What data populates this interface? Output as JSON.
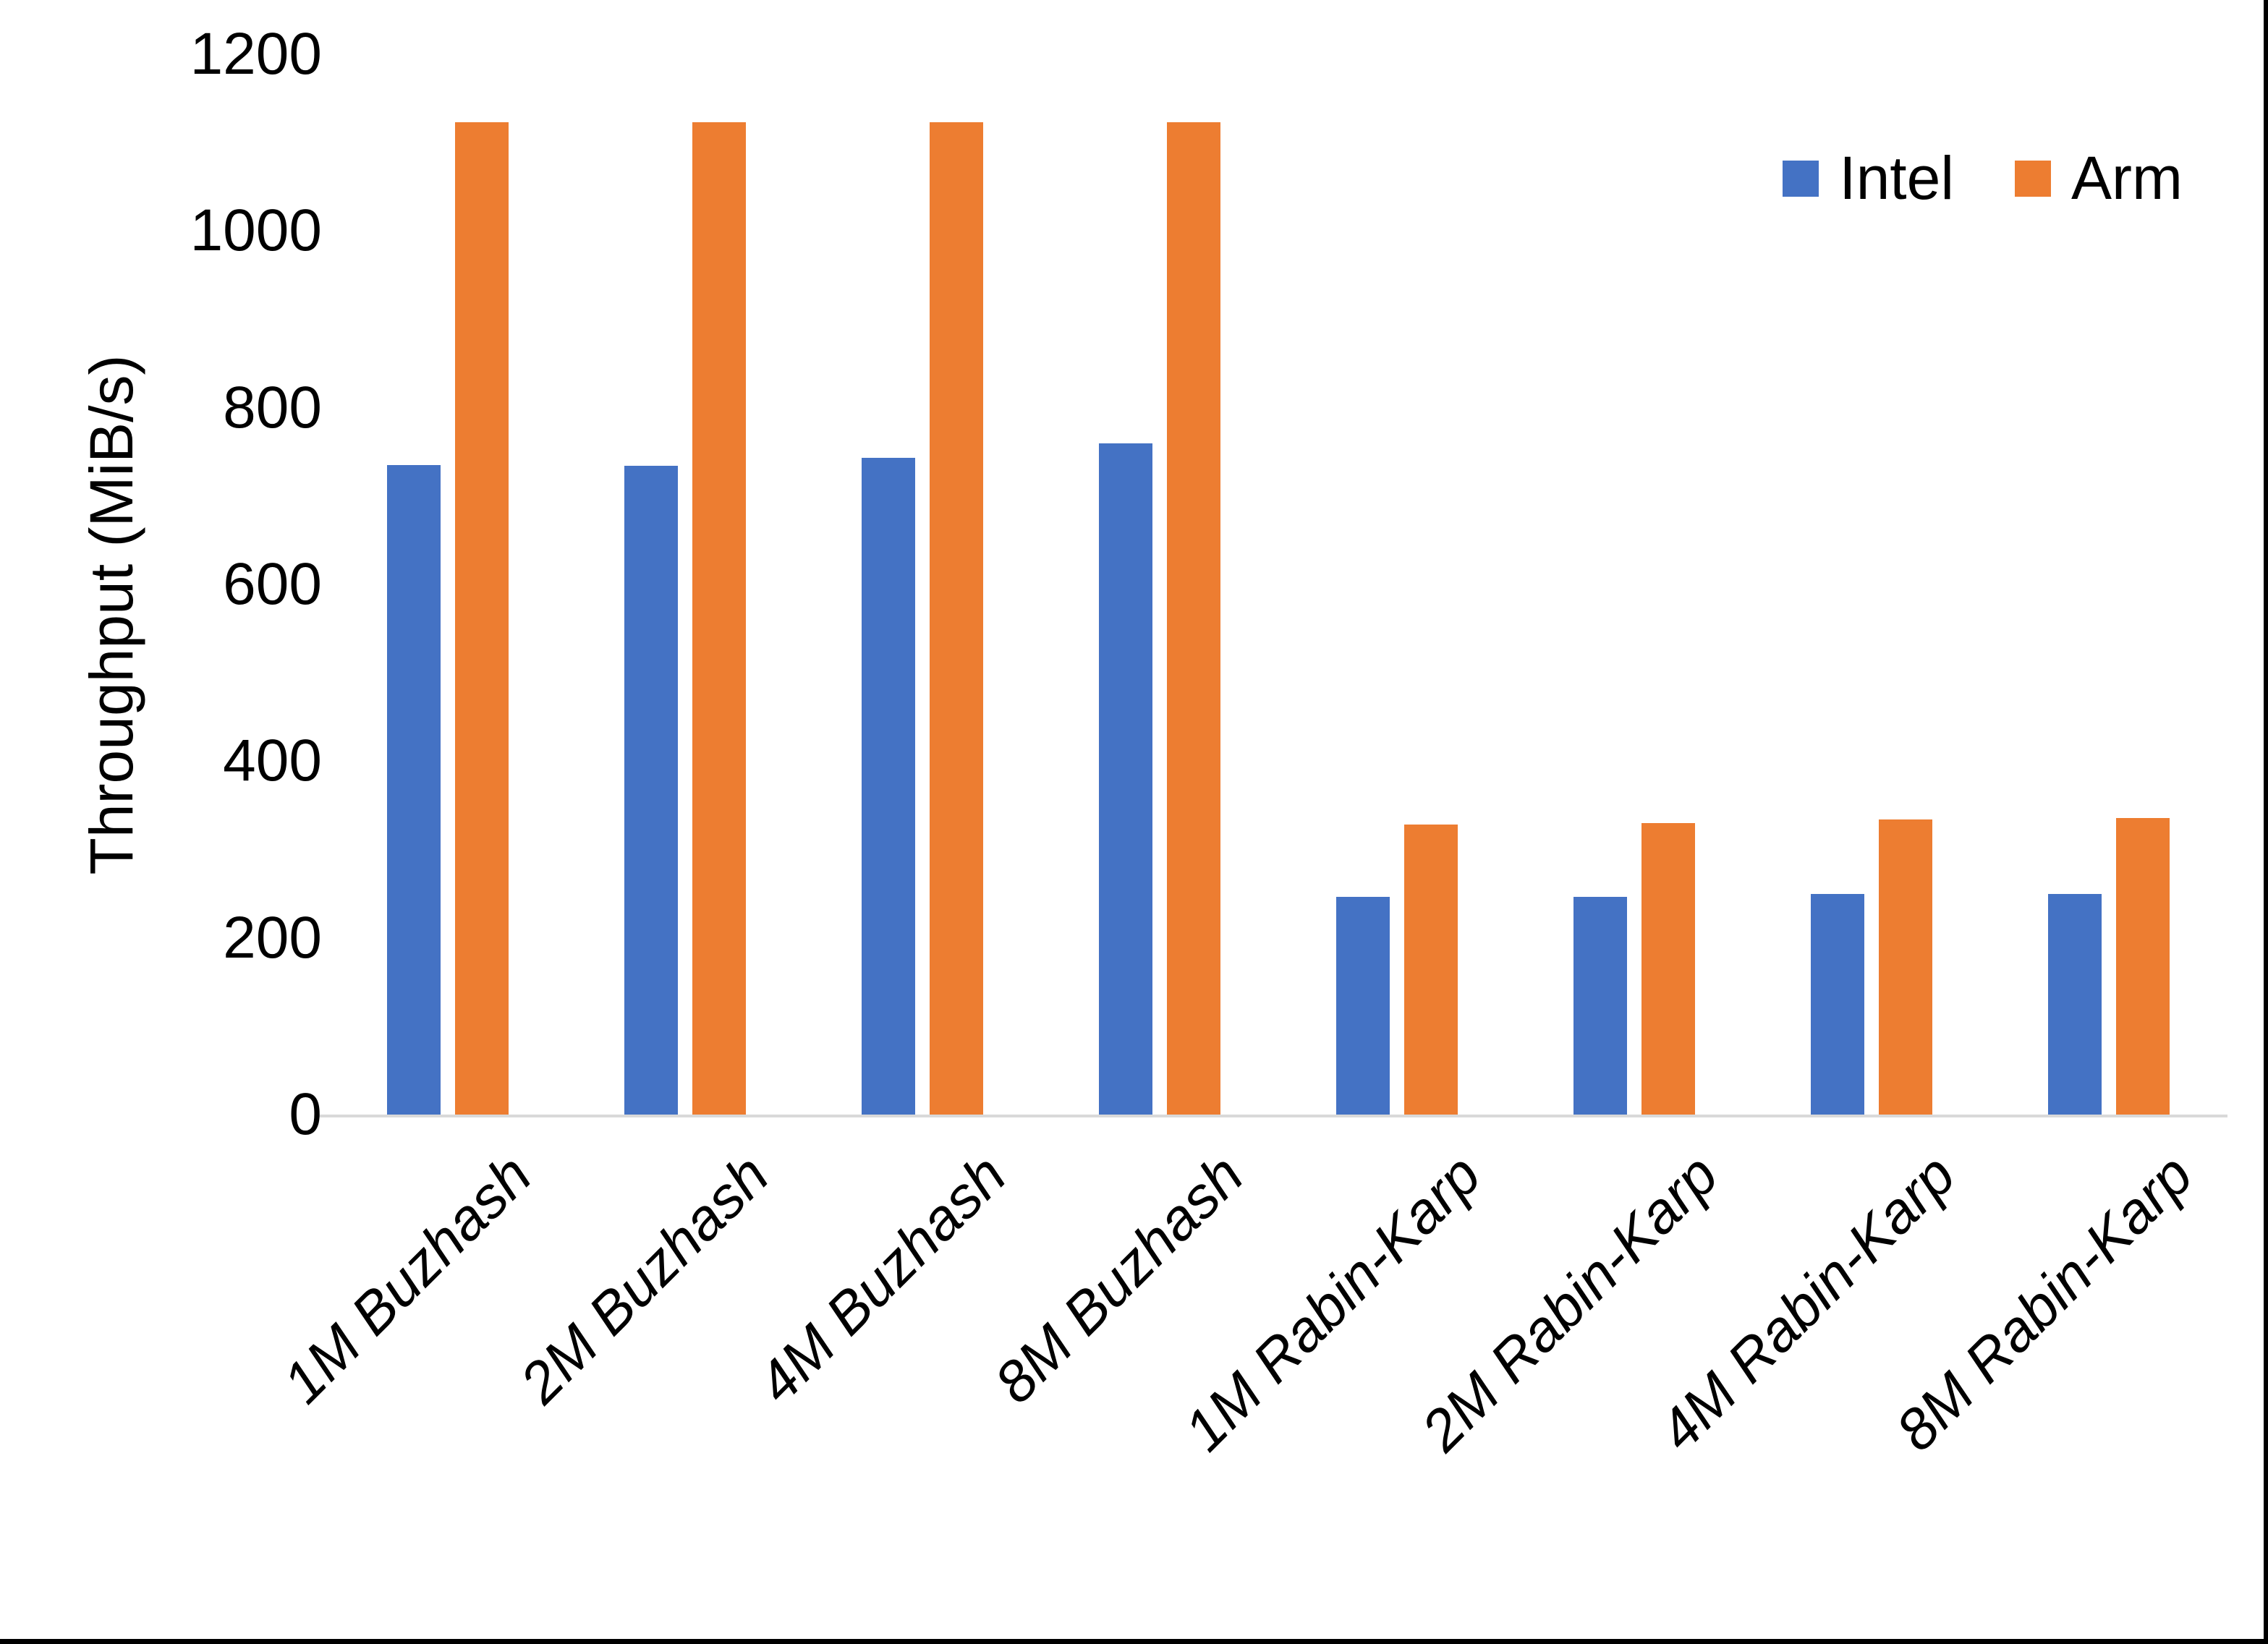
{
  "chart_data": {
    "type": "bar",
    "title": "",
    "xlabel": "",
    "ylabel": "Throughput (MiB/s)",
    "ylim": [
      0,
      1200
    ],
    "yticks": [
      0,
      200,
      400,
      600,
      800,
      1000,
      1200
    ],
    "grid": false,
    "legend_position": "top-right",
    "categories": [
      "1M Buzhash",
      "2M Buzhash",
      "4M Buzhash",
      "8M Buzhash",
      "1M Rabin-Karp",
      "2M Rabin-Karp",
      "4M Rabin-Karp",
      "8M Rabin-Karp"
    ],
    "series": [
      {
        "name": "Intel",
        "color": "#4472C4",
        "values": [
          735,
          734,
          743,
          760,
          246,
          246,
          250,
          250
        ]
      },
      {
        "name": "Arm",
        "color": "#ED7D31",
        "values": [
          1123,
          1123,
          1123,
          1123,
          328,
          330,
          334,
          336
        ]
      }
    ]
  },
  "colors": {
    "intel": "#4472C4",
    "arm": "#ED7D31",
    "axis_line": "#d9d9d9",
    "text": "#000000",
    "background": "#ffffff",
    "border": "#000000"
  }
}
